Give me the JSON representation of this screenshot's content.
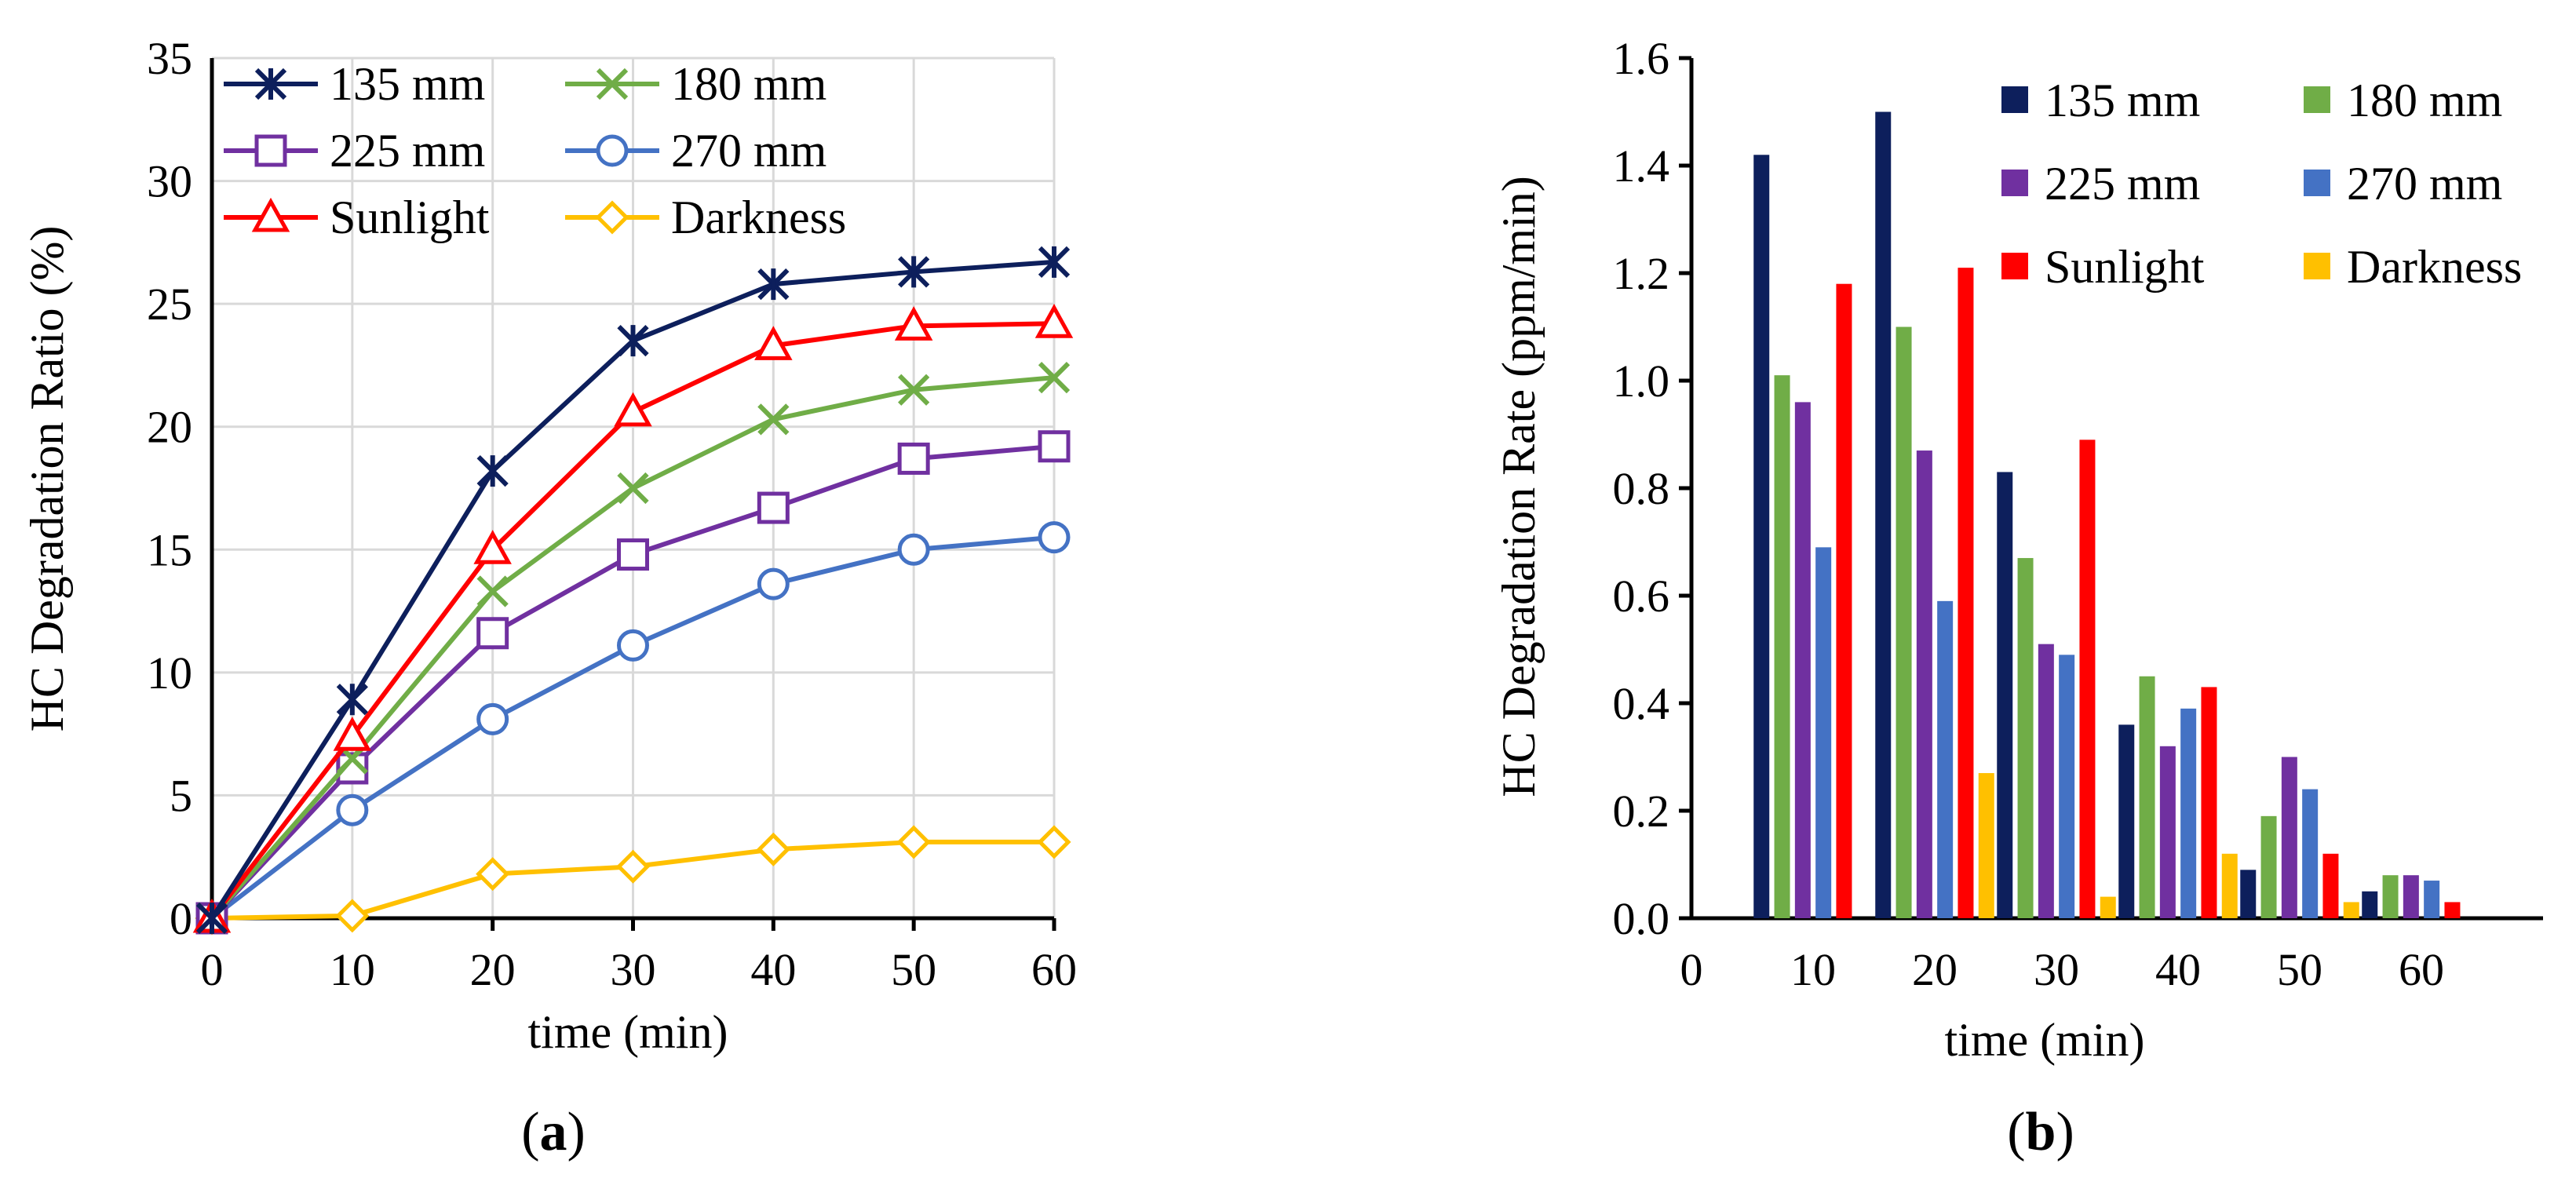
{
  "chart_data": [
    {
      "type": "line",
      "panel": "a",
      "title": "",
      "xlabel": "time  (min)",
      "ylabel": "HC  Degradation  Ratio  (%)",
      "xlim": [
        0,
        60
      ],
      "ylim": [
        0,
        35
      ],
      "xticks": [
        "0",
        "10",
        "20",
        "30",
        "40",
        "50",
        "60"
      ],
      "yticks": [
        "0",
        "5",
        "10",
        "15",
        "20",
        "25",
        "30",
        "35"
      ],
      "grid": true,
      "legend_position": "top-left",
      "x": [
        0,
        10,
        20,
        30,
        40,
        50,
        60
      ],
      "series": [
        {
          "name": "135 mm",
          "color": "#0d1f5c",
          "marker": "asterisk",
          "values": [
            0,
            8.9,
            18.2,
            23.5,
            25.8,
            26.3,
            26.7
          ]
        },
        {
          "name": "180 mm",
          "color": "#70ad47",
          "marker": "x",
          "values": [
            0,
            6.5,
            13.3,
            17.5,
            20.3,
            21.5,
            22.0
          ]
        },
        {
          "name": "225 mm",
          "color": "#7030a0",
          "marker": "square",
          "values": [
            0,
            6.1,
            11.6,
            14.8,
            16.7,
            18.7,
            19.2
          ]
        },
        {
          "name": "270 mm",
          "color": "#4472c4",
          "marker": "circle",
          "values": [
            0,
            4.4,
            8.1,
            11.1,
            13.6,
            15.0,
            15.5
          ]
        },
        {
          "name": "Sunlight",
          "color": "#ff0000",
          "marker": "triangle",
          "values": [
            0,
            7.4,
            15.0,
            20.6,
            23.3,
            24.1,
            24.2
          ]
        },
        {
          "name": "Darkness",
          "color": "#ffc000",
          "marker": "diamond",
          "values": [
            0,
            0.1,
            1.8,
            2.1,
            2.8,
            3.1,
            3.1
          ]
        }
      ]
    },
    {
      "type": "bar",
      "panel": "b",
      "title": "",
      "xlabel": "time  (min)",
      "ylabel": "HC  Degradation  Rate  (ppm/min)",
      "xlim": [
        0,
        70
      ],
      "ylim": [
        0,
        1.6
      ],
      "xticks": [
        "0",
        "10",
        "20",
        "30",
        "40",
        "50",
        "60"
      ],
      "yticks": [
        "0.0",
        "0.2",
        "0.4",
        "0.6",
        "0.8",
        "1.0",
        "1.2",
        "1.4",
        "1.6"
      ],
      "grid": false,
      "legend_position": "top-right",
      "categories": [
        10,
        20,
        30,
        40,
        50,
        60
      ],
      "series": [
        {
          "name": "135 mm",
          "color": "#0d1f5c",
          "values": [
            1.42,
            1.5,
            0.83,
            0.36,
            0.09,
            0.05
          ]
        },
        {
          "name": "180 mm",
          "color": "#70ad47",
          "values": [
            1.01,
            1.1,
            0.67,
            0.45,
            0.19,
            0.08
          ]
        },
        {
          "name": "225 mm",
          "color": "#7030a0",
          "values": [
            0.96,
            0.87,
            0.51,
            0.32,
            0.3,
            0.08
          ]
        },
        {
          "name": "270 mm",
          "color": "#4472c4",
          "values": [
            0.69,
            0.59,
            0.49,
            0.39,
            0.24,
            0.07
          ]
        },
        {
          "name": "Sunlight",
          "color": "#ff0000",
          "values": [
            1.18,
            1.21,
            0.89,
            0.43,
            0.12,
            0.03
          ]
        },
        {
          "name": "Darkness",
          "color": "#ffc000",
          "values": [
            0.0,
            0.27,
            0.04,
            0.12,
            0.03,
            0.0
          ]
        }
      ]
    }
  ],
  "captions": {
    "a": {
      "open": "(",
      "letter": "a",
      "close": ")"
    },
    "b": {
      "open": "(",
      "letter": "b",
      "close": ")"
    }
  }
}
